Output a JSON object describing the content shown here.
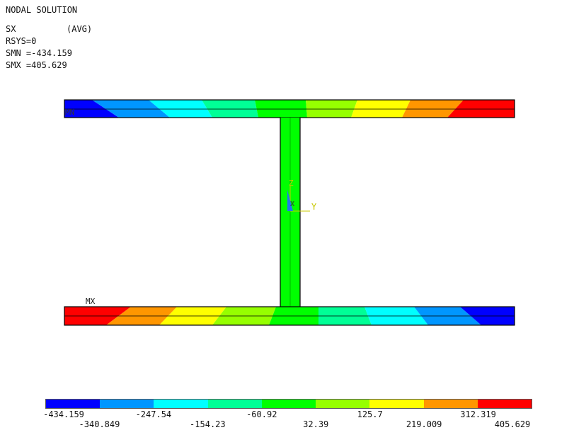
{
  "header": {
    "title": "NODAL SOLUTION",
    "result_item": "SX",
    "averaging": "(AVG)",
    "rsys": "RSYS=0",
    "smn": "SMN =-434.159",
    "smx": "SMX =405.629"
  },
  "markers": {
    "mn": "MN",
    "mx": "MX"
  },
  "triad": {
    "z_label": "Z",
    "y_label": "Y",
    "x_label": "X",
    "color": "#c8c800"
  },
  "legend": {
    "colors": [
      "#0000ff",
      "#0096ff",
      "#00ffff",
      "#00ff96",
      "#00ff00",
      "#96ff00",
      "#ffff00",
      "#ff9600",
      "#ff0000"
    ],
    "ticks": [
      "-434.159",
      "-340.849",
      "-247.54",
      "-154.23",
      "-60.92",
      "32.39",
      "125.7",
      "219.009",
      "312.319",
      "405.629"
    ]
  }
}
